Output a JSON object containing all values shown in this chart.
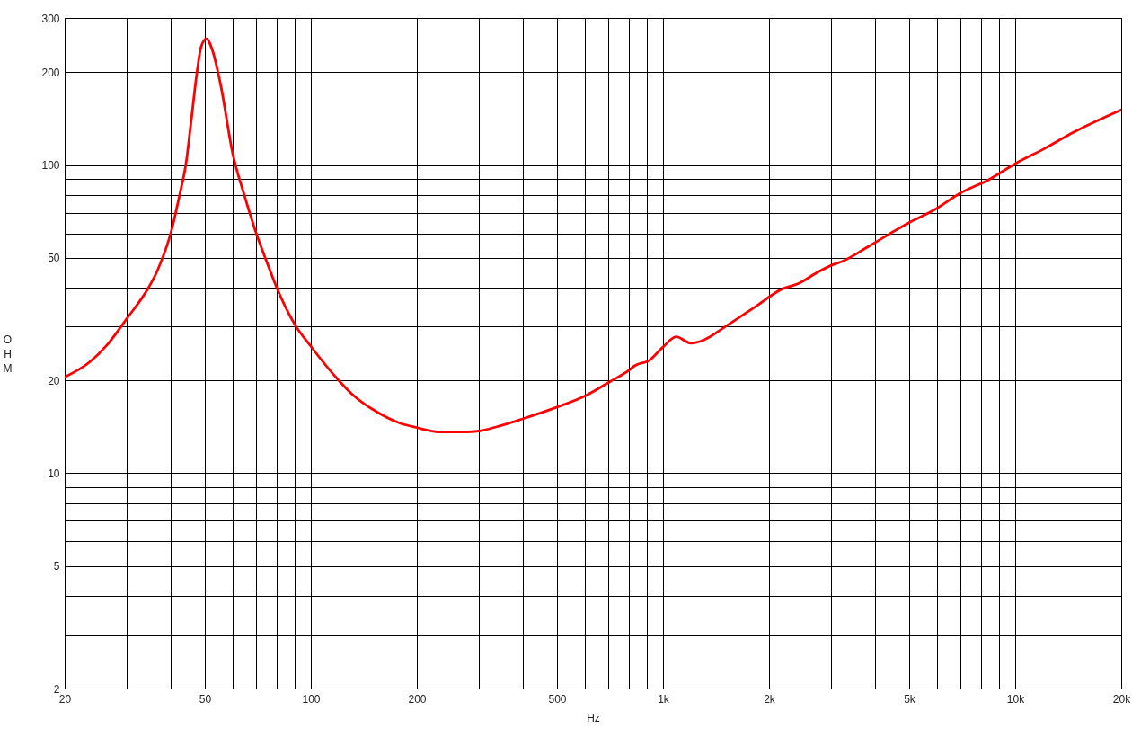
{
  "chart_data": {
    "type": "line",
    "xlabel": "Hz",
    "ylabel": "OHM",
    "log": "xy",
    "grid": true,
    "line_style": "solid",
    "xlim": [
      20,
      20000
    ],
    "ylim": [
      2,
      300
    ],
    "xticks": [
      20,
      {
        "value": 30,
        "label": null
      },
      {
        "value": 40,
        "label": null
      },
      50,
      {
        "value": 60,
        "label": null
      },
      {
        "value": 70,
        "label": null
      },
      {
        "value": 80,
        "label": null
      },
      {
        "value": 90,
        "label": null
      },
      100,
      200,
      {
        "value": 300,
        "label": null
      },
      {
        "value": 400,
        "label": null
      },
      500,
      {
        "value": 600,
        "label": null
      },
      {
        "value": 700,
        "label": null
      },
      {
        "value": 800,
        "label": null
      },
      {
        "value": 900,
        "label": null
      },
      {
        "value": 1000,
        "label": "1k"
      },
      {
        "value": 2000,
        "label": "2k"
      },
      {
        "value": 3000,
        "label": null
      },
      {
        "value": 4000,
        "label": null
      },
      {
        "value": 5000,
        "label": "5k"
      },
      {
        "value": 6000,
        "label": null
      },
      {
        "value": 7000,
        "label": null
      },
      {
        "value": 8000,
        "label": null
      },
      {
        "value": 9000,
        "label": null
      },
      {
        "value": 10000,
        "label": "10k"
      },
      {
        "value": 20000,
        "label": "20k"
      }
    ],
    "yticks": [
      2,
      {
        "value": 3,
        "label": null
      },
      {
        "value": 4,
        "label": null
      },
      5,
      {
        "value": 6,
        "label": null
      },
      {
        "value": 7,
        "label": null
      },
      {
        "value": 8,
        "label": null
      },
      {
        "value": 9,
        "label": null
      },
      10,
      20,
      {
        "value": 30,
        "label": null
      },
      {
        "value": 40,
        "label": null
      },
      50,
      {
        "value": 60,
        "label": null
      },
      {
        "value": 70,
        "label": null
      },
      {
        "value": 80,
        "label": null
      },
      {
        "value": 90,
        "label": null
      },
      100,
      200,
      300
    ],
    "x": [
      20,
      23.5,
      26.4,
      30,
      34.6,
      36.4,
      38,
      39,
      40,
      41.1,
      42.1,
      43,
      43.8,
      44.2,
      45.7,
      47.5,
      48.8,
      50.5,
      52.4,
      55.4,
      60,
      64.9,
      70,
      75.2,
      80,
      90,
      100,
      120,
      132,
      154,
      177,
      200,
      234,
      275,
      300,
      349,
      399,
      494,
      606,
      706,
      802,
      830,
      912,
      998,
      1090,
      1200,
      1310,
      1490,
      1810,
      2190,
      2420,
      2730,
      3040,
      3230,
      3840,
      4970,
      5900,
      6990,
      8410,
      9940,
      12100,
      14700,
      20000
    ],
    "series": [
      {
        "color": "#ff0000",
        "values": [
          20.5,
          22.9,
          26.1,
          31.7,
          40,
          44.6,
          50.3,
          54.6,
          60,
          68,
          77,
          86,
          95,
          101,
          138,
          200,
          242,
          257,
          238,
          183,
          109,
          79,
          60,
          48,
          40,
          30.4,
          25.8,
          20,
          17.9,
          15.8,
          14.6,
          14.05,
          13.6,
          13.6,
          13.7,
          14.3,
          15,
          16.3,
          17.9,
          19.8,
          21.6,
          22.3,
          23.2,
          25.6,
          27.7,
          26.4,
          27.1,
          29.7,
          34.4,
          39.7,
          41.2,
          44.7,
          47.5,
          48.7,
          54.5,
          64.8,
          71.6,
          81.1,
          89.6,
          100.6,
          113,
          128,
          151
        ]
      }
    ]
  }
}
